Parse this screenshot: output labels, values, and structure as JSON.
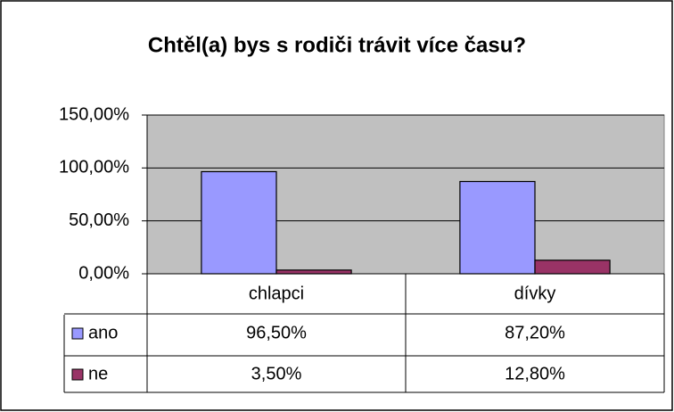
{
  "chart_data": {
    "type": "bar",
    "title": "Chtěl(a) bys s rodiči trávit více času?",
    "categories": [
      "chlapci",
      "dívky"
    ],
    "series": [
      {
        "name": "ano",
        "color": "#9999ff",
        "values": [
          96.5,
          87.2
        ],
        "value_labels": [
          "96,50%",
          "87,20%"
        ]
      },
      {
        "name": "ne",
        "color": "#993366",
        "values": [
          3.5,
          12.8
        ],
        "value_labels": [
          "3,50%",
          "12,80%"
        ]
      }
    ],
    "ylim": [
      0,
      150
    ],
    "yticks": [
      {
        "value": 0,
        "label": "0,00%"
      },
      {
        "value": 50,
        "label": "50,00%"
      },
      {
        "value": 100,
        "label": "100,00%"
      },
      {
        "value": 150,
        "label": "150,00%"
      }
    ],
    "grid": true,
    "plot_background": "#c0c0c0"
  }
}
